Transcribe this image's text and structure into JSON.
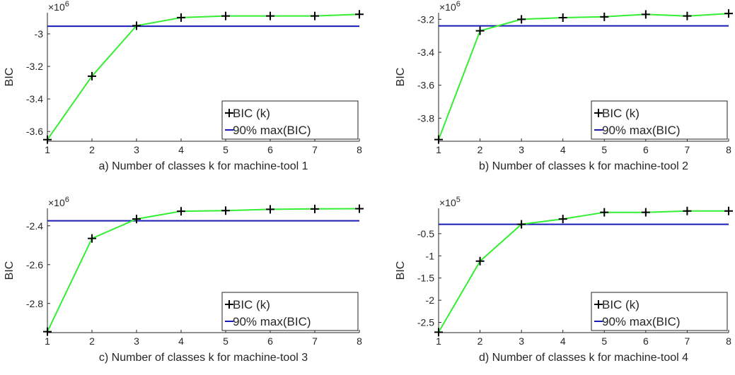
{
  "chart_data": [
    {
      "type": "line",
      "xlabel": "a) Number of classes k for machine-tool 1",
      "ylabel": "BIC",
      "exponent_label": "×10",
      "exponent_power": "6",
      "x": [
        1,
        2,
        3,
        4,
        5,
        6,
        7,
        8
      ],
      "xlim": [
        1,
        8
      ],
      "ylim": [
        -3.66,
        -2.87
      ],
      "yticks": [
        -3.6,
        -3.4,
        -3.2,
        -3.0
      ],
      "ytick_labels": [
        "-3.6",
        "-3.4",
        "-3.2",
        "-3"
      ],
      "series": [
        {
          "name": "BIC (k)",
          "values": [
            -3.65,
            -3.26,
            -2.95,
            -2.9,
            -2.89,
            -2.89,
            -2.89,
            -2.88
          ],
          "color": "#33ee33",
          "marker": "+"
        },
        {
          "name": "90% max(BIC)",
          "values": [
            -2.953,
            -2.953,
            -2.953,
            -2.953,
            -2.953,
            -2.953,
            -2.953,
            -2.953
          ],
          "color": "#1a1ab8"
        }
      ],
      "legend_placement": "bottom-right",
      "grid": false
    },
    {
      "type": "line",
      "xlabel": "b) Number of classes k for machine-tool 2",
      "ylabel": "BIC",
      "exponent_label": "×10",
      "exponent_power": "6",
      "x": [
        1,
        2,
        3,
        4,
        5,
        6,
        7,
        8
      ],
      "xlim": [
        1,
        8
      ],
      "ylim": [
        -3.94,
        -3.16
      ],
      "yticks": [
        -3.8,
        -3.6,
        -3.4,
        -3.2
      ],
      "ytick_labels": [
        "-3.8",
        "-3.6",
        "-3.4",
        "-3.2"
      ],
      "series": [
        {
          "name": "BIC (k)",
          "values": [
            -3.93,
            -3.27,
            -3.2,
            -3.19,
            -3.185,
            -3.17,
            -3.18,
            -3.165
          ],
          "color": "#33ee33",
          "marker": "+"
        },
        {
          "name": "90% max(BIC)",
          "values": [
            -3.24,
            -3.24,
            -3.24,
            -3.24,
            -3.24,
            -3.24,
            -3.24,
            -3.24
          ],
          "color": "#1a1ab8"
        }
      ],
      "legend_placement": "bottom-right",
      "grid": false
    },
    {
      "type": "line",
      "xlabel": "c) Number of classes k for machine-tool 3",
      "ylabel": "BIC",
      "exponent_label": "×10",
      "exponent_power": "6",
      "x": [
        1,
        2,
        3,
        4,
        5,
        6,
        7,
        8
      ],
      "xlim": [
        1,
        8
      ],
      "ylim": [
        -2.95,
        -2.31
      ],
      "yticks": [
        -2.8,
        -2.6,
        -2.4
      ],
      "ytick_labels": [
        "-2.8",
        "-2.6",
        "-2.4"
      ],
      "series": [
        {
          "name": "BIC (k)",
          "values": [
            -2.945,
            -2.465,
            -2.365,
            -2.325,
            -2.322,
            -2.315,
            -2.313,
            -2.312
          ],
          "color": "#33ee33",
          "marker": "+"
        },
        {
          "name": "90% max(BIC)",
          "values": [
            -2.374,
            -2.374,
            -2.374,
            -2.374,
            -2.374,
            -2.374,
            -2.374,
            -2.374
          ],
          "color": "#1a1ab8"
        }
      ],
      "legend_placement": "bottom-right",
      "grid": false
    },
    {
      "type": "line",
      "xlabel": "d) Number of classes k for machine-tool 4",
      "ylabel": "BIC",
      "exponent_label": "×10",
      "exponent_power": "5",
      "x": [
        1,
        2,
        3,
        4,
        5,
        6,
        7,
        8
      ],
      "xlim": [
        1,
        8
      ],
      "ylim": [
        -2.73,
        0.07
      ],
      "yticks": [
        -2.5,
        -2.0,
        -1.5,
        -1.0,
        -0.5
      ],
      "ytick_labels": [
        "-2.5",
        "-2",
        "-1.5",
        "-1",
        "-0.5"
      ],
      "series": [
        {
          "name": "BIC (k)",
          "values": [
            -2.72,
            -1.12,
            -0.29,
            -0.17,
            -0.02,
            -0.02,
            0.01,
            0.01
          ],
          "color": "#33ee33",
          "marker": "+"
        },
        {
          "name": "90% max(BIC)",
          "values": [
            -0.29,
            -0.29,
            -0.29,
            -0.29,
            -0.29,
            -0.29,
            -0.29,
            -0.29
          ],
          "color": "#1a1ab8"
        }
      ],
      "legend_placement": "bottom-right",
      "grid": false
    }
  ]
}
